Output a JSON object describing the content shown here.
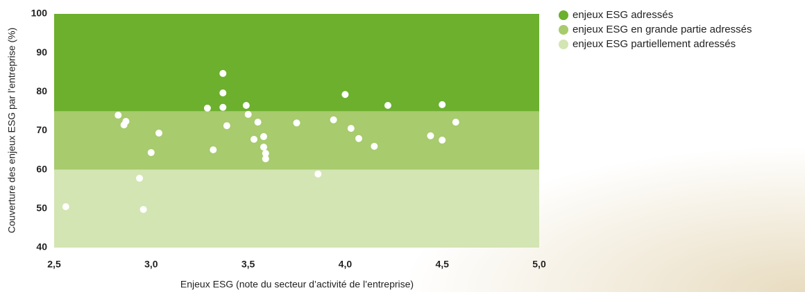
{
  "chart_data": {
    "type": "scatter",
    "x_label": "Enjeux ESG (note du secteur d’activité de l’entreprise)",
    "y_label": "Couverture des enjeux ESG par l’entreprise (%)",
    "bands": [
      {
        "name": "enjeux ESG adressés",
        "color": "#6cb02e",
        "from": 75,
        "to": 100
      },
      {
        "name": "enjeux ESG en grande partie adressés",
        "color": "#a7cb6d",
        "from": 60,
        "to": 75
      },
      {
        "name": "enjeux ESG partiellement adressés",
        "color": "#d3e5b3",
        "from": 40,
        "to": 60
      }
    ],
    "series": [
      {
        "color": "#ffffff",
        "x": [
          2.56,
          2.83,
          2.87,
          2.86,
          2.94,
          2.96,
          3.0,
          3.04,
          3.29,
          3.32,
          3.37,
          3.37,
          3.37,
          3.39,
          3.49,
          3.5,
          3.53,
          3.55,
          3.58,
          3.58,
          3.59,
          3.59,
          3.75,
          3.86,
          3.94,
          4.0,
          4.03,
          4.07,
          4.15,
          4.22,
          4.44,
          4.5,
          4.5,
          4.57
        ],
        "values": [
          50.5,
          74.0,
          72.4,
          71.5,
          57.8,
          49.8,
          64.4,
          69.4,
          75.8,
          65.1,
          79.7,
          84.7,
          76.0,
          71.3,
          76.5,
          74.2,
          67.8,
          72.2,
          68.5,
          65.8,
          64.2,
          62.8,
          72.0,
          58.9,
          72.8,
          79.3,
          70.6,
          68.0,
          66.0,
          76.5,
          68.7,
          76.7,
          67.6,
          72.2
        ]
      }
    ],
    "xlim": [
      2.5,
      5.0
    ],
    "xticks": [
      {
        "value": 2.5,
        "label": "2,5"
      },
      {
        "value": 3.0,
        "label": "3,0"
      },
      {
        "value": 3.5,
        "label": "3,5"
      },
      {
        "value": 4.0,
        "label": "4,0"
      },
      {
        "value": 4.5,
        "label": "4,5"
      },
      {
        "value": 5.0,
        "label": "5,0"
      }
    ],
    "ylim": [
      40,
      100
    ],
    "yticks": [
      40,
      50,
      60,
      70,
      80,
      90,
      100
    ]
  }
}
